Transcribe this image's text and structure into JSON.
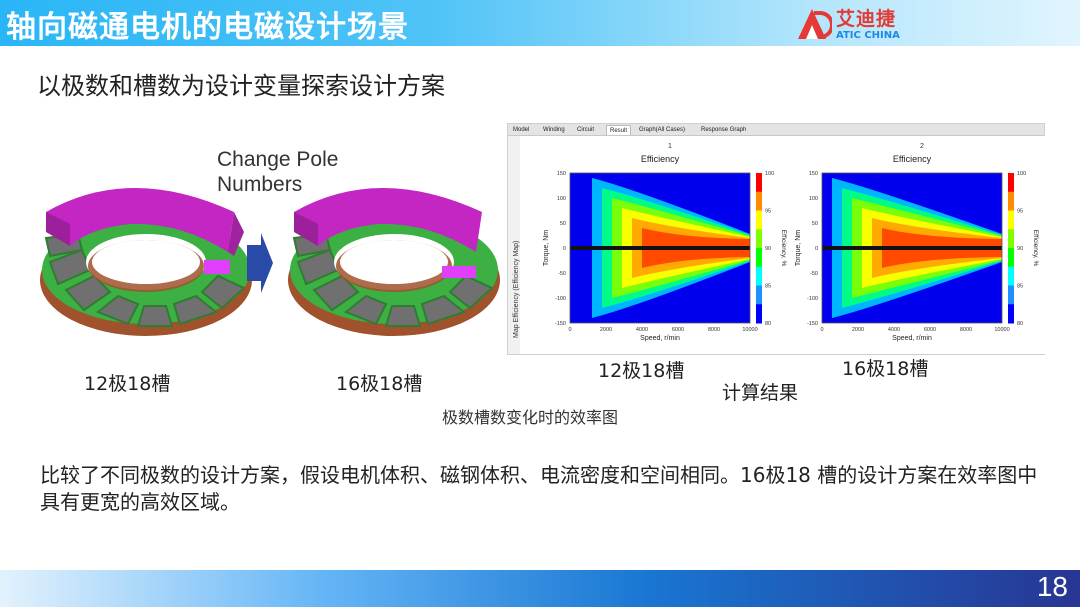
{
  "header": {
    "title": "轴向磁通电机的电磁设计场景",
    "logo_cn": "艾迪捷",
    "logo_en": "ATIC CHINA"
  },
  "subtitle": "以极数和槽数为设计变量探索设计方案",
  "figure": {
    "change_label_line1": "Change Pole",
    "change_label_line2": "Numbers",
    "motor1_caption": "12极18槽",
    "motor2_caption": "16极18槽",
    "map1_caption": "12极18槽",
    "map2_caption": "16极18槽",
    "result_caption": "计算结果",
    "figure_caption": "极数槽数变化时的效率图"
  },
  "software": {
    "tabs": [
      "Model",
      "Winding",
      "Circuit",
      "Result",
      "Graph(All Cases)",
      "Response Graph"
    ],
    "active_tab": "Result",
    "side_label": "Map Efficiency (Efficiency Map)",
    "case1": "1",
    "case2": "2"
  },
  "chart_data": [
    {
      "type": "heatmap",
      "title": "Efficiency",
      "xlabel": "Speed, r/min",
      "ylabel": "Torque, Nm",
      "colorbar_label": "Efficiency, %",
      "x_ticks": [
        0,
        2000,
        4000,
        6000,
        8000,
        10000
      ],
      "y_ticks": [
        150,
        100,
        50,
        0,
        -50,
        -100,
        -150
      ],
      "colorbar_ticks": [
        100,
        95,
        90,
        85,
        80
      ],
      "xlim": [
        0,
        10000
      ],
      "ylim": [
        -150,
        150
      ],
      "colorbar_range": [
        80,
        100
      ]
    },
    {
      "type": "heatmap",
      "title": "Efficiency",
      "xlabel": "Speed, r/min",
      "ylabel": "Torque, Nm",
      "colorbar_label": "Efficiency, %",
      "x_ticks": [
        0,
        2000,
        4000,
        6000,
        8000,
        10000
      ],
      "y_ticks": [
        150,
        100,
        50,
        0,
        -50,
        -100,
        -150
      ],
      "colorbar_ticks": [
        100,
        95,
        90,
        85,
        80
      ],
      "xlim": [
        0,
        10000
      ],
      "ylim": [
        -150,
        150
      ],
      "colorbar_range": [
        80,
        100
      ]
    }
  ],
  "paragraph": "比较了不同极数的设计方案，假设电机体积、磁钢体积、电流密度和空间相同。16极18 槽的设计方案在效率图中具有更宽的高效区域。",
  "footer": {
    "page_number": "18"
  },
  "colors": {
    "magnet": "#c326c3",
    "coil": "#a0522d",
    "core": "#3cb043",
    "slot": "#707070",
    "arrow": "#2a4aa8"
  }
}
